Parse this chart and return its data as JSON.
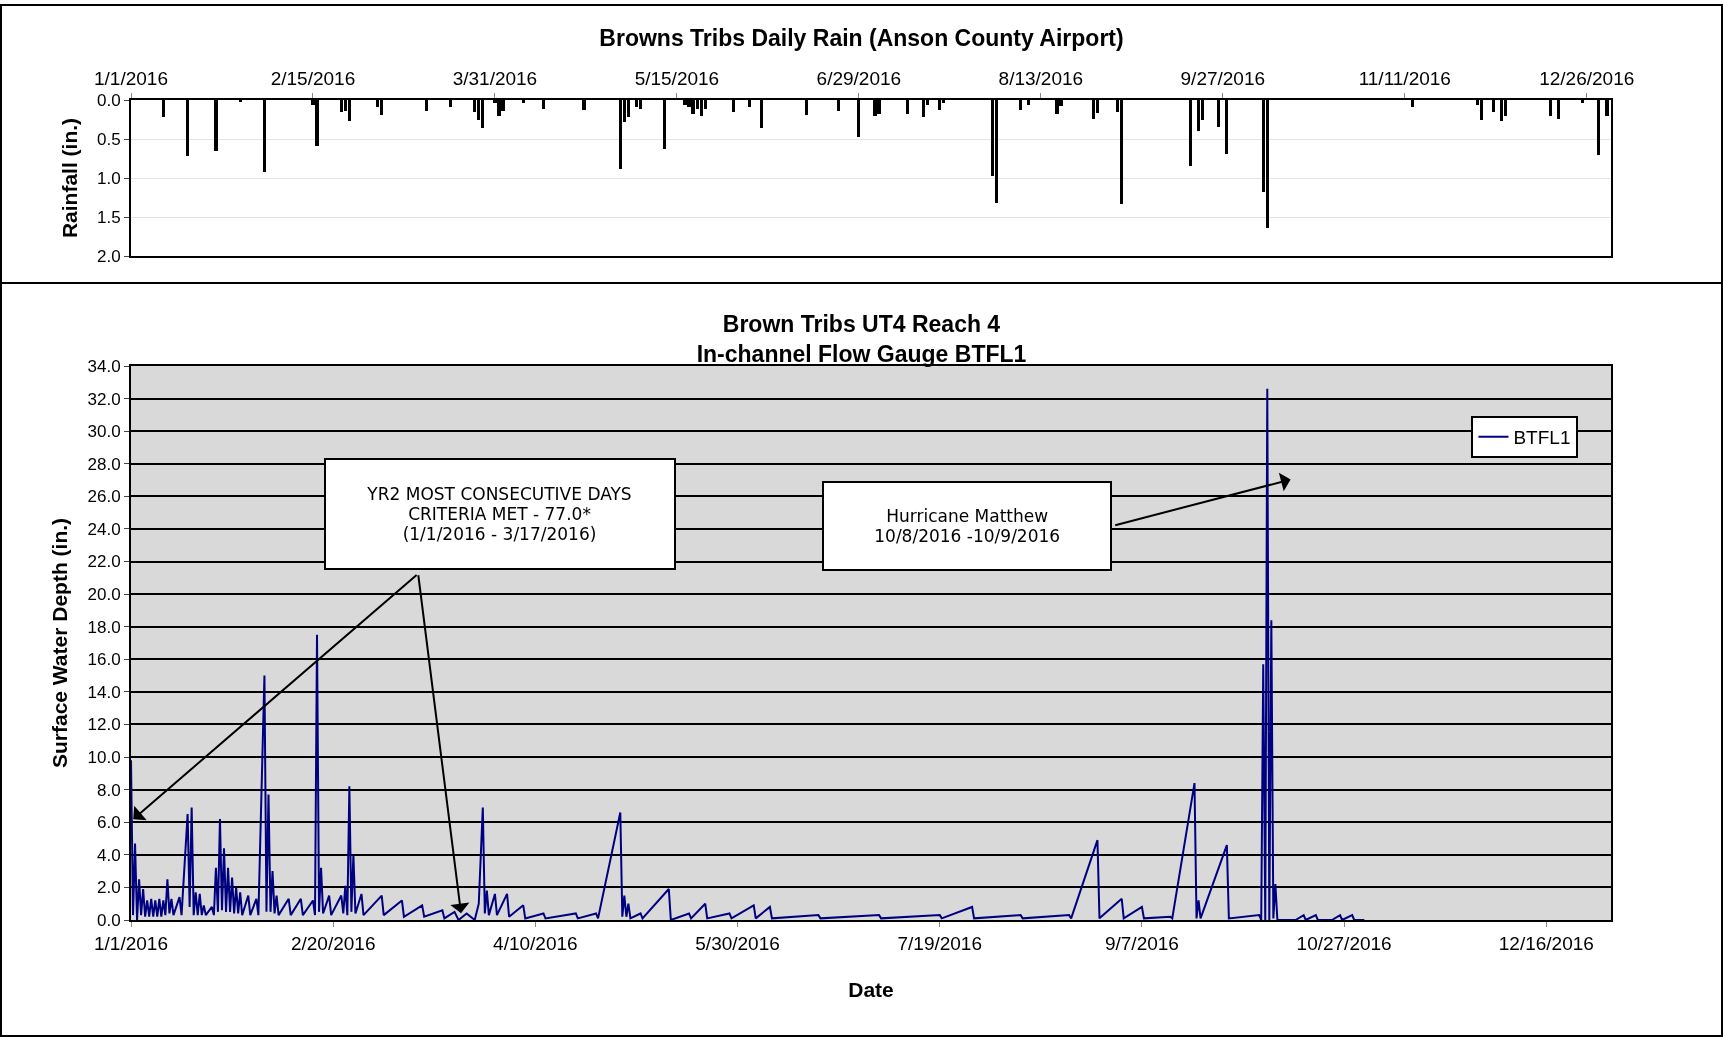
{
  "chart_data": [
    {
      "type": "bar",
      "title": "Browns Tribs Daily Rain (Anson County Airport)",
      "ylabel": "Rainfall (in.)",
      "color": "#000000",
      "x": [
        "2016-01-09",
        "2016-01-15",
        "2016-01-22",
        "2016-01-28",
        "2016-02-03",
        "2016-02-15",
        "2016-02-16",
        "2016-02-22",
        "2016-02-23",
        "2016-02-24",
        "2016-03-02",
        "2016-03-03",
        "2016-03-14",
        "2016-03-20",
        "2016-03-26",
        "2016-03-27",
        "2016-03-28",
        "2016-03-31",
        "2016-04-01",
        "2016-04-02",
        "2016-04-07",
        "2016-04-12",
        "2016-04-22",
        "2016-05-01",
        "2016-05-02",
        "2016-05-03",
        "2016-05-05",
        "2016-05-06",
        "2016-05-12",
        "2016-05-17",
        "2016-05-18",
        "2016-05-19",
        "2016-05-20",
        "2016-05-21",
        "2016-05-22",
        "2016-05-29",
        "2016-06-02",
        "2016-06-05",
        "2016-06-16",
        "2016-06-24",
        "2016-06-29",
        "2016-07-03",
        "2016-07-04",
        "2016-07-11",
        "2016-07-15",
        "2016-07-16",
        "2016-07-19",
        "2016-07-20",
        "2016-08-01",
        "2016-08-02",
        "2016-08-08",
        "2016-08-10",
        "2016-08-17",
        "2016-08-18",
        "2016-08-26",
        "2016-08-27",
        "2016-09-01",
        "2016-09-02",
        "2016-09-19",
        "2016-09-21",
        "2016-09-22",
        "2016-09-26",
        "2016-09-28",
        "2016-10-07",
        "2016-10-08",
        "2016-11-13",
        "2016-11-29",
        "2016-11-30",
        "2016-12-03",
        "2016-12-05",
        "2016-12-06",
        "2016-12-17",
        "2016-12-19",
        "2016-12-25",
        "2016-12-29",
        "2016-12-31"
      ],
      "values": [
        0.22,
        0.72,
        0.66,
        0.03,
        0.92,
        0.06,
        0.59,
        0.16,
        0.14,
        0.27,
        0.09,
        0.19,
        0.14,
        0.09,
        0.16,
        0.26,
        0.36,
        0.04,
        0.2,
        0.14,
        0.04,
        0.11,
        0.13,
        0.89,
        0.28,
        0.22,
        0.09,
        0.11,
        0.63,
        0.06,
        0.09,
        0.18,
        0.11,
        0.2,
        0.11,
        0.15,
        0.09,
        0.36,
        0.19,
        0.14,
        0.48,
        0.2,
        0.18,
        0.18,
        0.22,
        0.06,
        0.13,
        0.04,
        0.97,
        1.32,
        0.13,
        0.06,
        0.18,
        0.08,
        0.24,
        0.17,
        0.15,
        1.33,
        0.85,
        0.4,
        0.26,
        0.35,
        0.69,
        1.18,
        1.64,
        0.09,
        0.06,
        0.26,
        0.16,
        0.27,
        0.21,
        0.2,
        0.24,
        0.04,
        0.7,
        0.2
      ],
      "xlim": [
        "2016-01-01",
        "2017-01-01"
      ],
      "xticks": [
        {
          "value": "2016-01-01",
          "label": "1/1/2016"
        },
        {
          "value": "2016-02-15",
          "label": "2/15/2016"
        },
        {
          "value": "2016-03-31",
          "label": "3/31/2016"
        },
        {
          "value": "2016-05-15",
          "label": "5/15/2016"
        },
        {
          "value": "2016-06-29",
          "label": "6/29/2016"
        },
        {
          "value": "2016-08-13",
          "label": "8/13/2016"
        },
        {
          "value": "2016-09-27",
          "label": "9/27/2016"
        },
        {
          "value": "2016-11-11",
          "label": "11/11/2016"
        },
        {
          "value": "2016-12-26",
          "label": "12/26/2016"
        }
      ],
      "ylim": [
        2,
        0
      ],
      "yticks": [
        {
          "value": 0,
          "label": "0.0"
        },
        {
          "value": 0.5,
          "label": "0.5"
        },
        {
          "value": 1,
          "label": "1.0"
        },
        {
          "value": 1.5,
          "label": "1.5"
        },
        {
          "value": 2,
          "label": "2.0"
        }
      ],
      "grid": "y"
    },
    {
      "type": "line",
      "title": "Brown Tribs UT4 Reach 4\nIn-channel Flow Gauge BTFL1",
      "xlabel": "Date",
      "ylabel": "Surface Water Depth (in.)",
      "x": [
        "2016-01-01",
        "2016-01-01T12:00",
        "2016-01-02",
        "2016-01-02T12:00",
        "2016-01-03",
        "2016-01-03T12:00",
        "2016-01-04",
        "2016-01-04T12:00",
        "2016-01-05",
        "2016-01-05T12:00",
        "2016-01-06",
        "2016-01-06T12:00",
        "2016-01-07",
        "2016-01-07T12:00",
        "2016-01-08",
        "2016-01-08T12:00",
        "2016-01-09",
        "2016-01-09T12:00",
        "2016-01-10",
        "2016-01-10T12:00",
        "2016-01-11",
        "2016-01-11T12:00",
        "2016-01-13",
        "2016-01-13T12:00",
        "2016-01-15",
        "2016-01-15T12:00",
        "2016-01-16",
        "2016-01-16T12:00",
        "2016-01-17",
        "2016-01-17T12:00",
        "2016-01-18",
        "2016-01-18T12:00",
        "2016-01-19",
        "2016-01-19T12:00",
        "2016-01-21",
        "2016-01-21T12:00",
        "2016-01-22",
        "2016-01-22T12:00",
        "2016-01-23",
        "2016-01-23T12:00",
        "2016-01-24",
        "2016-01-24T12:00",
        "2016-01-25",
        "2016-01-25T12:00",
        "2016-01-26",
        "2016-01-26T12:00",
        "2016-01-27",
        "2016-01-27T12:00",
        "2016-01-28",
        "2016-01-28T12:00",
        "2016-01-30",
        "2016-01-30T12:00",
        "2016-02-01",
        "2016-02-01T12:00",
        "2016-02-03",
        "2016-02-03T12:00",
        "2016-02-04",
        "2016-02-04T12:00",
        "2016-02-05",
        "2016-02-05T12:00",
        "2016-02-06",
        "2016-02-06T12:00",
        "2016-02-09",
        "2016-02-09T12:00",
        "2016-02-12",
        "2016-02-12T12:00",
        "2016-02-15",
        "2016-02-15T12:00",
        "2016-02-16",
        "2016-02-16T12:00",
        "2016-02-17",
        "2016-02-17T12:00",
        "2016-02-19",
        "2016-02-19T12:00",
        "2016-02-22",
        "2016-02-22T12:00",
        "2016-02-23",
        "2016-02-23T12:00",
        "2016-02-24",
        "2016-02-24T12:00",
        "2016-02-25",
        "2016-02-25T12:00",
        "2016-02-27",
        "2016-02-27T12:00",
        "2016-03-03",
        "2016-03-03T12:00",
        "2016-03-08",
        "2016-03-08T12:00",
        "2016-03-13",
        "2016-03-13T12:00",
        "2016-03-18",
        "2016-03-18T12:00",
        "2016-03-21",
        "2016-03-22",
        "2016-03-24",
        "2016-03-26",
        "2016-03-27",
        "2016-03-28",
        "2016-03-28T12:00",
        "2016-03-29",
        "2016-03-29T12:00",
        "2016-03-31",
        "2016-03-31T12:00",
        "2016-04-03",
        "2016-04-03T12:00",
        "2016-04-07",
        "2016-04-07T12:00",
        "2016-04-12",
        "2016-04-12T12:00",
        "2016-04-20",
        "2016-04-20T12:00",
        "2016-04-25",
        "2016-04-25T12:00",
        "2016-05-01",
        "2016-05-01T12:00",
        "2016-05-02",
        "2016-05-02T12:00",
        "2016-05-03",
        "2016-05-03T12:00",
        "2016-05-06",
        "2016-05-06T12:00",
        "2016-05-13",
        "2016-05-13T12:00",
        "2016-05-18",
        "2016-05-18T12:00",
        "2016-05-22",
        "2016-05-22T12:00",
        "2016-05-28",
        "2016-05-28T12:00",
        "2016-06-03",
        "2016-06-03T12:00",
        "2016-06-07",
        "2016-06-07T12:00",
        "2016-06-19",
        "2016-06-19T12:00",
        "2016-07-04",
        "2016-07-04T12:00",
        "2016-07-19",
        "2016-07-19T12:00",
        "2016-07-27",
        "2016-07-27T12:00",
        "2016-08-08",
        "2016-08-08T12:00",
        "2016-08-20",
        "2016-08-20T12:00",
        "2016-08-27",
        "2016-08-27T12:00",
        "2016-09-02",
        "2016-09-02T12:00",
        "2016-09-07",
        "2016-09-07T12:00",
        "2016-09-14",
        "2016-09-14T12:00",
        "2016-09-20",
        "2016-09-20T12:00",
        "2016-09-21",
        "2016-09-21T12:00",
        "2016-09-28",
        "2016-09-28T12:00",
        "2016-10-06",
        "2016-10-06T12:00",
        "2016-10-07",
        "2016-10-07T12:00",
        "2016-10-08",
        "2016-10-08T12:00",
        "2016-10-09",
        "2016-10-09T12:00",
        "2016-10-10",
        "2016-10-10T12:00",
        "2016-10-15",
        "2016-10-17",
        "2016-10-17T12:00",
        "2016-10-20",
        "2016-10-20T12:00",
        "2016-10-24",
        "2016-10-26",
        "2016-10-26T12:00",
        "2016-10-29",
        "2016-10-29T12:00",
        "2016-11-01"
      ],
      "series": [
        {
          "name": "BTFL1",
          "color": "#000080",
          "values": [
            9.8,
            0.3,
            4.7,
            0,
            2.5,
            0.3,
            1.9,
            0.2,
            1.2,
            0.2,
            1.3,
            0.2,
            1.2,
            0.2,
            1.3,
            0.2,
            1.2,
            0.3,
            2.5,
            0.4,
            1.3,
            0.3,
            1.4,
            0.3,
            6.5,
            0.8,
            6.9,
            0.3,
            1.7,
            0.3,
            1.6,
            0.3,
            0.9,
            0.3,
            0.8,
            0.3,
            3.2,
            0.5,
            6.2,
            0.6,
            4.4,
            0.5,
            3.2,
            0.5,
            2.6,
            0.4,
            2.0,
            0.4,
            1.7,
            0.3,
            1.5,
            0.3,
            1.3,
            0.3,
            15.0,
            0.5,
            7.7,
            0.5,
            3.0,
            0.4,
            1.5,
            0.3,
            1.3,
            0.3,
            1.3,
            0.3,
            1.2,
            0.3,
            17.5,
            0.5,
            3.2,
            0.4,
            1.5,
            0.3,
            1.5,
            0.4,
            2.1,
            0.3,
            8.2,
            0.5,
            4.0,
            0.4,
            1.6,
            0.3,
            1.5,
            0.3,
            1.2,
            0.2,
            0.9,
            0.2,
            0.6,
            0.1,
            0.5,
            0,
            0.4,
            0,
            1.0,
            6.9,
            0.4,
            1.8,
            0.3,
            1.6,
            0.3,
            1.6,
            0.2,
            0.9,
            0.1,
            0.4,
            0.1,
            0.4,
            0.1,
            0.4,
            0.1,
            6.6,
            0.2,
            1.5,
            0.2,
            1.0,
            0.1,
            0.4,
            0.1,
            1.9,
            0,
            0.4,
            0.1,
            1.0,
            0.1,
            0.4,
            0.1,
            0.9,
            0.1,
            0.8,
            0.1,
            0.3,
            0.1,
            0.3,
            0.1,
            0.3,
            0.1,
            0.8,
            0.1,
            0.3,
            0.1,
            0.3,
            0.1,
            4.9,
            0.1,
            1.3,
            0.1,
            0.8,
            0.1,
            0.2,
            0.1,
            8.4,
            0.1,
            1.2,
            0.1,
            4.6,
            0.1,
            0.3,
            0,
            15.7,
            0,
            32.6,
            0,
            18.4,
            0.1,
            2.2,
            0,
            0,
            0.3,
            0,
            0.3,
            0,
            0,
            0.3,
            0,
            0.3,
            0,
            0
          ]
        }
      ],
      "xlim": [
        "2016-01-01",
        "2017-01-01"
      ],
      "xticks": [
        {
          "value": "2016-01-01",
          "label": "1/1/2016"
        },
        {
          "value": "2016-02-20",
          "label": "2/20/2016"
        },
        {
          "value": "2016-04-10",
          "label": "4/10/2016"
        },
        {
          "value": "2016-05-30",
          "label": "5/30/2016"
        },
        {
          "value": "2016-07-19",
          "label": "7/19/2016"
        },
        {
          "value": "2016-09-07",
          "label": "9/7/2016"
        },
        {
          "value": "2016-10-27",
          "label": "10/27/2016"
        },
        {
          "value": "2016-12-16",
          "label": "12/16/2016"
        }
      ],
      "ylim": [
        0,
        34
      ],
      "yticks": [
        {
          "value": 0,
          "label": "0.0"
        },
        {
          "value": 2,
          "label": "2.0"
        },
        {
          "value": 4,
          "label": "4.0"
        },
        {
          "value": 6,
          "label": "6.0"
        },
        {
          "value": 8,
          "label": "8.0"
        },
        {
          "value": 10,
          "label": "10.0"
        },
        {
          "value": 12,
          "label": "12.0"
        },
        {
          "value": 14,
          "label": "14.0"
        },
        {
          "value": 16,
          "label": "16.0"
        },
        {
          "value": 18,
          "label": "18.0"
        },
        {
          "value": 20,
          "label": "20.0"
        },
        {
          "value": 22,
          "label": "22.0"
        },
        {
          "value": 24,
          "label": "24.0"
        },
        {
          "value": 26,
          "label": "26.0"
        },
        {
          "value": 28,
          "label": "28.0"
        },
        {
          "value": 30,
          "label": "30.0"
        },
        {
          "value": 32,
          "label": "32.0"
        },
        {
          "value": 34,
          "label": "34.0"
        }
      ],
      "grid": "y",
      "legend": "top right",
      "annotations": [
        "YR2 MOST CONSECUTIVE DAYS\nCRITERIA MET - 77.0*\n(1/1/2016 - 3/17/2016)",
        "Hurricane Matthew\n10/8/2016 -10/9/2016"
      ]
    }
  ]
}
